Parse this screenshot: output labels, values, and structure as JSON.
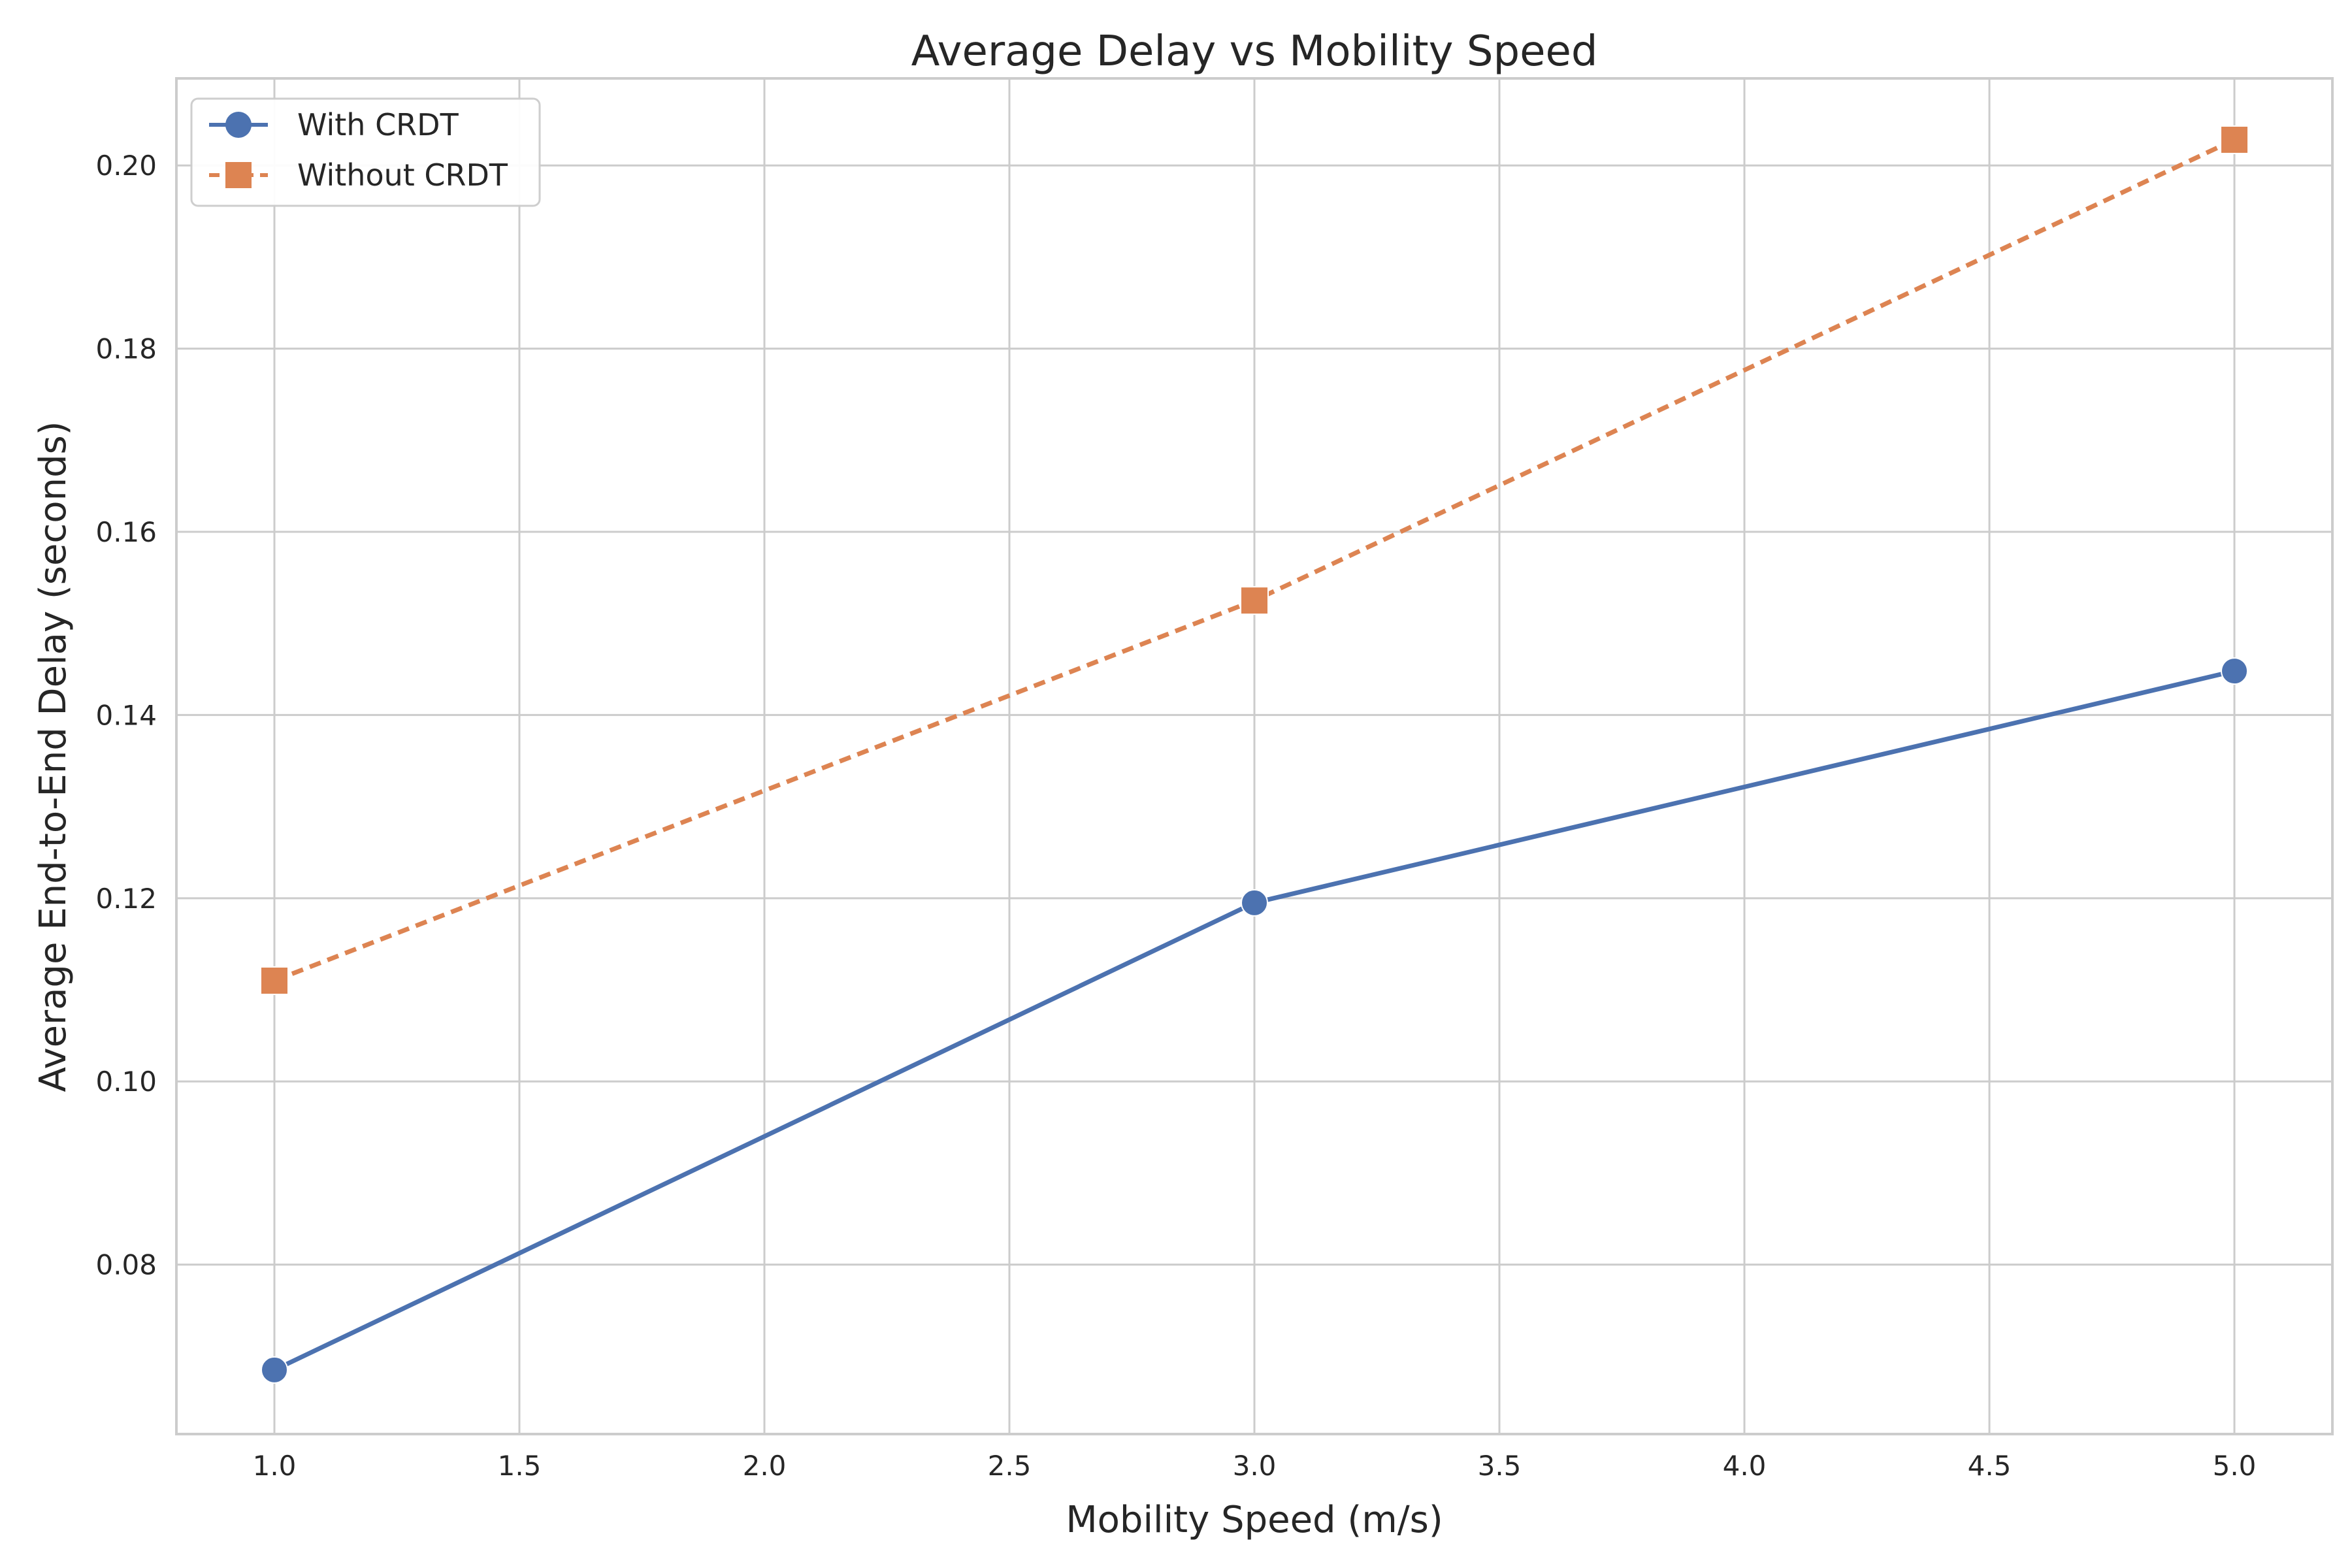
{
  "chart_data": {
    "type": "line",
    "title": "Average Delay vs Mobility Speed",
    "xlabel": "Mobility Speed (m/s)",
    "ylabel": "Average End-to-End Delay (seconds)",
    "x": [
      1.0,
      3.0,
      5.0
    ],
    "xlim": [
      0.8,
      5.2
    ],
    "ylim": [
      0.0615,
      0.2095
    ],
    "x_ticks": [
      "1.0",
      "1.5",
      "2.0",
      "2.5",
      "3.0",
      "3.5",
      "4.0",
      "4.5",
      "5.0"
    ],
    "y_ticks": [
      "0.08",
      "0.10",
      "0.12",
      "0.14",
      "0.16",
      "0.18",
      "0.20"
    ],
    "grid": true,
    "legend_position": "top-left",
    "series": [
      {
        "name": "With CRDT",
        "values": [
          0.0685,
          0.1195,
          0.1448
        ],
        "color": "#4c72b0",
        "marker": "circle",
        "line_style": "solid"
      },
      {
        "name": "Without CRDT",
        "values": [
          0.111,
          0.1525,
          0.2028
        ],
        "color": "#dd8452",
        "marker": "square",
        "line_style": "dashed"
      }
    ]
  }
}
